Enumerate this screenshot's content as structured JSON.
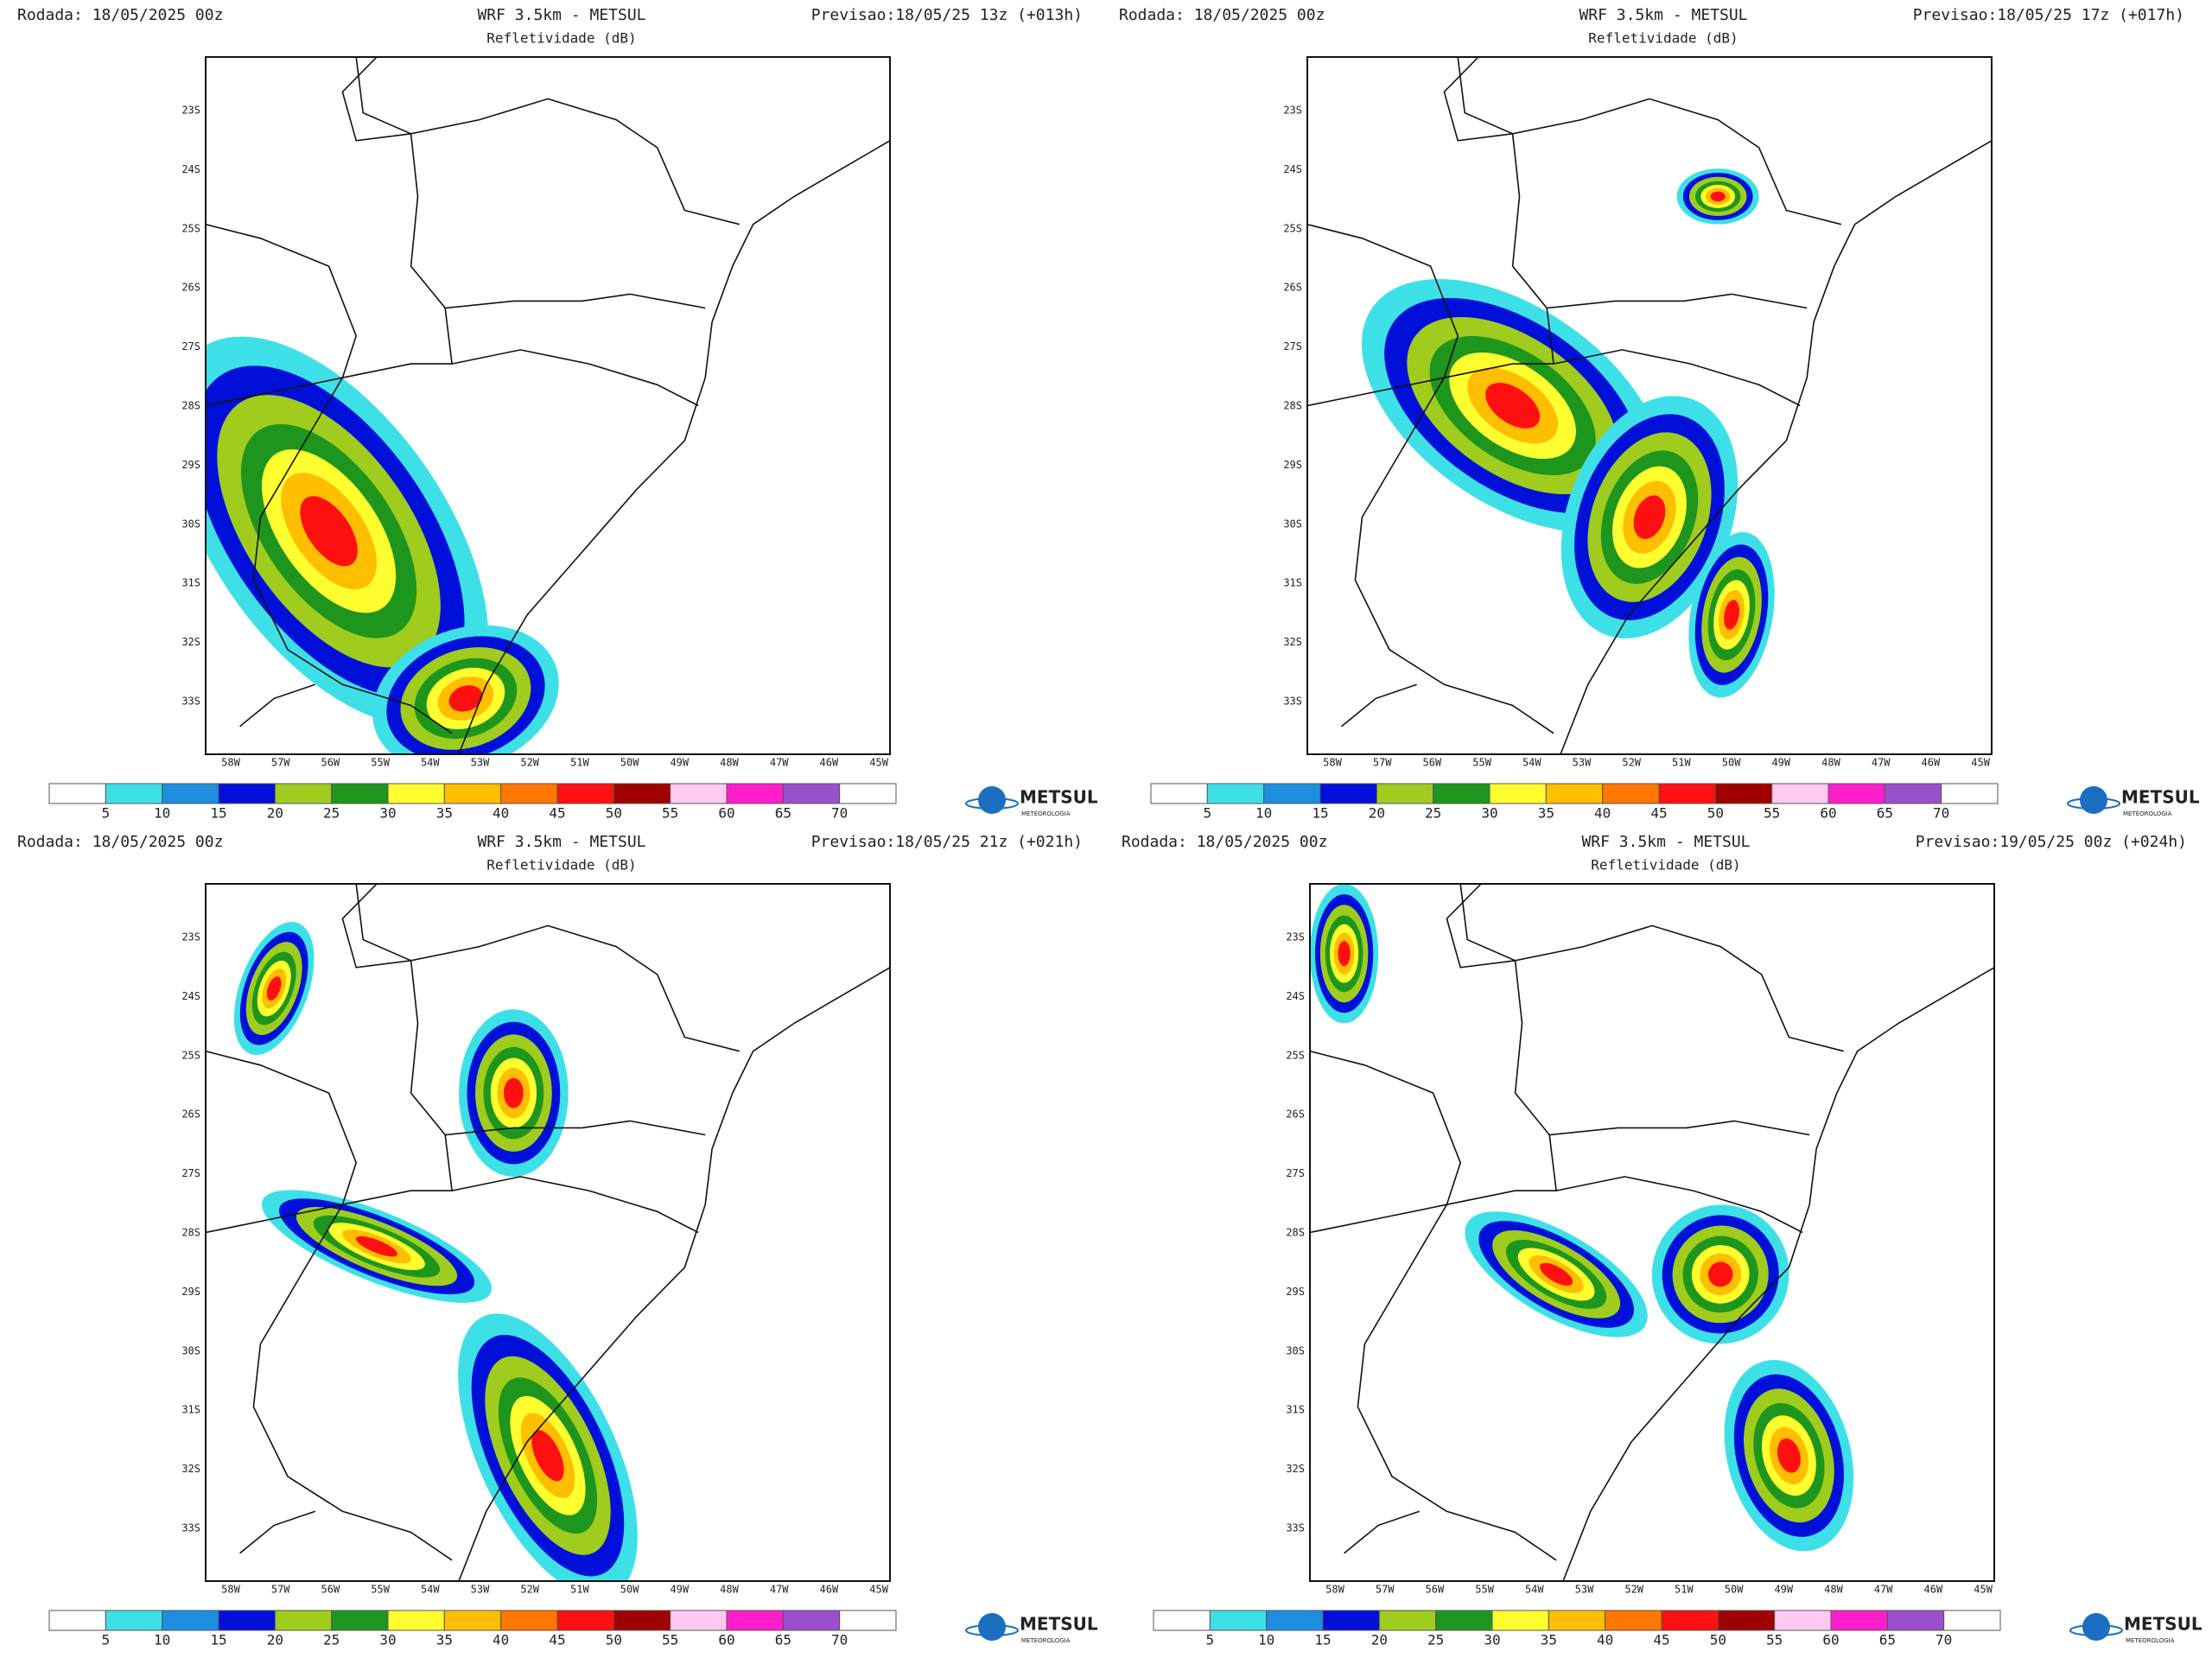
{
  "panels": [
    {
      "header_left": "Rodada: 18/05/2025 00z",
      "title": "WRF 3.5km - METSUL",
      "subtitle": "Refletividade (dB)",
      "header_right": "Previsao:18/05/25 13z (+013h)"
    },
    {
      "header_left": "Rodada: 18/05/2025 00z",
      "title": "WRF 3.5km - METSUL",
      "subtitle": "Refletividade (dB)",
      "header_right": "Previsao:18/05/25 17z (+017h)"
    },
    {
      "header_left": "Rodada: 18/05/2025 00z",
      "title": "WRF 3.5km - METSUL",
      "subtitle": "Refletividade (dB)",
      "header_right": "Previsao:18/05/25 21z (+021h)"
    },
    {
      "header_left": "Rodada: 18/05/2025 00z",
      "title": "WRF 3.5km - METSUL",
      "subtitle": "Refletividade (dB)",
      "header_right": "Previsao:19/05/25 00z (+024h)"
    }
  ],
  "lat_labels": [
    "23S",
    "24S",
    "25S",
    "26S",
    "27S",
    "28S",
    "29S",
    "30S",
    "31S",
    "32S",
    "33S"
  ],
  "lon_labels": [
    "58W",
    "57W",
    "56W",
    "55W",
    "54W",
    "53W",
    "52W",
    "51W",
    "50W",
    "49W",
    "48W",
    "47W",
    "46W",
    "45W"
  ],
  "colorbar": {
    "colors": [
      "#ffffff",
      "#3ee0e8",
      "#1e8ee0",
      "#0010d8",
      "#a0cc1e",
      "#1e961e",
      "#ffff30",
      "#ffbe00",
      "#ff7800",
      "#ff1010",
      "#a00000",
      "#ffc8f0",
      "#ff1ecc",
      "#9a50cc",
      "#ffffff"
    ],
    "ticks": [
      5,
      10,
      15,
      20,
      25,
      30,
      35,
      40,
      45,
      50,
      55,
      60,
      65,
      70
    ]
  },
  "logo": {
    "name": "METSUL",
    "tagline": "METEOROLOGIA"
  }
}
